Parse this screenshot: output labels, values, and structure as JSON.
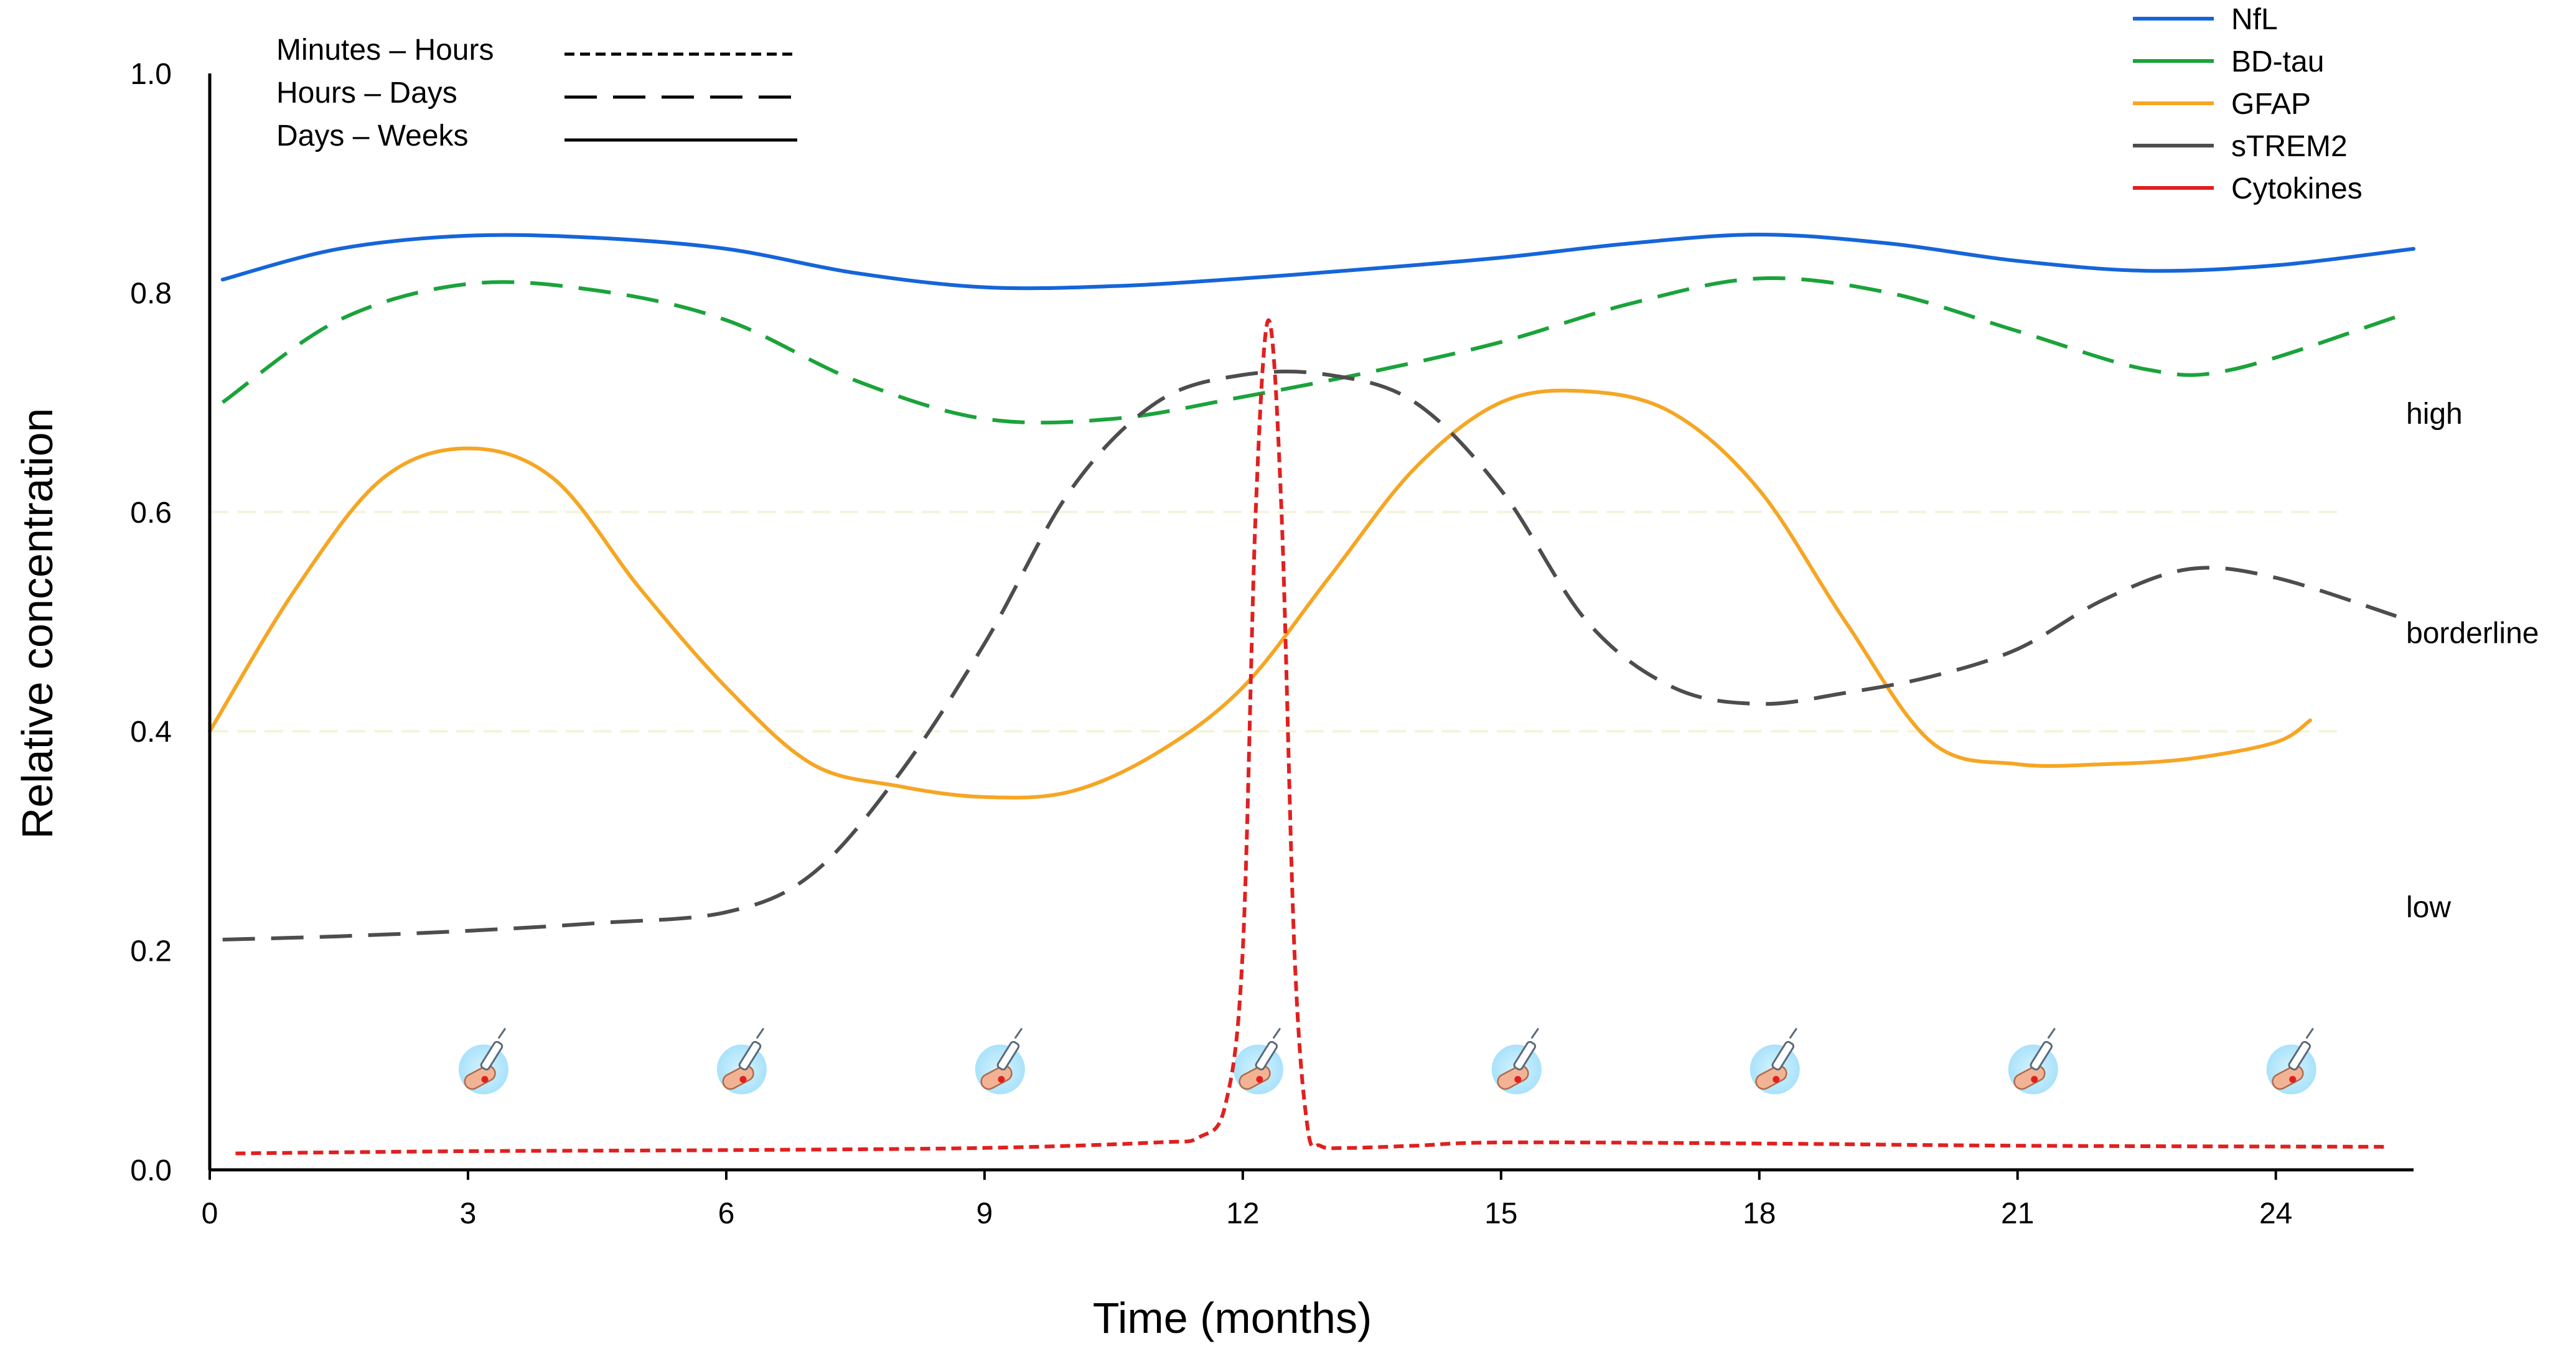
{
  "chart_data": {
    "type": "line",
    "title": "",
    "xlabel": "Time (months)",
    "ylabel": "Relative concentration",
    "xlim": [
      0,
      25.6
    ],
    "ylim": [
      0.0,
      1.0
    ],
    "x_ticks": [
      0,
      3,
      6,
      9,
      12,
      15,
      18,
      21,
      24
    ],
    "y_ticks": [
      0.0,
      0.2,
      0.4,
      0.6,
      0.8,
      1.0
    ],
    "y_tick_labels": [
      "0.0",
      "0.2",
      "0.4",
      "0.6",
      "0.8",
      "1.0"
    ],
    "thresholds": [
      0.4,
      0.6
    ],
    "zones": [
      {
        "label": "high",
        "y": 0.69
      },
      {
        "label": "borderline",
        "y": 0.49
      },
      {
        "label": "low",
        "y": 0.24
      }
    ],
    "sampling_marker_x": [
      3,
      6,
      9,
      12,
      15,
      18,
      21,
      24
    ],
    "sampling_marker_y": 0.095,
    "timescale_legend": {
      "position": "top-left",
      "entries": [
        {
          "label": "Minutes – Hours",
          "style": "dotted"
        },
        {
          "label": "Hours – Days",
          "style": "dashed"
        },
        {
          "label": "Days – Weeks",
          "style": "solid"
        }
      ]
    },
    "legend": {
      "position": "top-right",
      "entries": [
        "NfL",
        "BD-tau",
        "GFAP",
        "sTREM2",
        "Cytokines"
      ]
    },
    "series": [
      {
        "name": "NfL",
        "color": "#1565D8",
        "style": "solid",
        "x": [
          0.15,
          1.5,
          3.0,
          4.5,
          6.0,
          7.5,
          9.0,
          10.5,
          12.0,
          13.5,
          15.0,
          16.5,
          18.0,
          19.5,
          21.0,
          22.5,
          24.0,
          25.6
        ],
        "y": [
          0.812,
          0.84,
          0.852,
          0.85,
          0.84,
          0.818,
          0.805,
          0.806,
          0.813,
          0.822,
          0.832,
          0.845,
          0.853,
          0.845,
          0.829,
          0.82,
          0.825,
          0.84
        ]
      },
      {
        "name": "BD-tau",
        "color": "#1AA33A",
        "style": "dashed",
        "x": [
          0.15,
          1.5,
          3.0,
          4.5,
          6.0,
          7.5,
          9.0,
          10.5,
          12.0,
          13.5,
          15.0,
          16.5,
          18.0,
          19.5,
          21.0,
          22.5,
          23.5,
          25.4
        ],
        "y": [
          0.7,
          0.775,
          0.808,
          0.802,
          0.775,
          0.72,
          0.685,
          0.685,
          0.705,
          0.728,
          0.755,
          0.79,
          0.813,
          0.8,
          0.765,
          0.73,
          0.73,
          0.778
        ]
      },
      {
        "name": "GFAP",
        "color": "#F5A623",
        "style": "solid",
        "x": [
          0.0,
          1.0,
          2.0,
          3.0,
          4.0,
          5.0,
          6.0,
          7.0,
          8.0,
          9.0,
          10.0,
          11.0,
          12.0,
          13.0,
          14.0,
          15.0,
          16.0,
          17.0,
          18.0,
          19.0,
          20.0,
          21.0,
          22.0,
          23.0,
          24.0,
          24.4
        ],
        "y": [
          0.4,
          0.53,
          0.63,
          0.658,
          0.63,
          0.53,
          0.44,
          0.37,
          0.35,
          0.34,
          0.345,
          0.38,
          0.44,
          0.54,
          0.64,
          0.7,
          0.71,
          0.69,
          0.62,
          0.5,
          0.39,
          0.37,
          0.37,
          0.375,
          0.39,
          0.41
        ]
      },
      {
        "name": "sTREM2",
        "color": "#4D4D4D",
        "style": "dashed",
        "x": [
          0.15,
          1.5,
          3.0,
          4.5,
          6.0,
          7.0,
          8.0,
          9.0,
          10.0,
          11.0,
          12.0,
          13.0,
          14.0,
          15.0,
          16.0,
          17.0,
          18.0,
          19.0,
          20.0,
          21.0,
          22.0,
          23.0,
          24.0,
          25.4
        ],
        "y": [
          0.21,
          0.213,
          0.218,
          0.225,
          0.235,
          0.27,
          0.36,
          0.48,
          0.62,
          0.7,
          0.725,
          0.725,
          0.7,
          0.62,
          0.5,
          0.44,
          0.425,
          0.435,
          0.45,
          0.475,
          0.52,
          0.548,
          0.54,
          0.505
        ]
      },
      {
        "name": "Cytokines",
        "color": "#E02020",
        "style": "dotted",
        "x": [
          0.3,
          3.0,
          6.0,
          9.0,
          11.0,
          11.5,
          11.8,
          12.0,
          12.15,
          12.3,
          12.45,
          12.6,
          12.75,
          12.9,
          13.2,
          14.0,
          15.0,
          18.0,
          21.0,
          25.3
        ],
        "y": [
          0.015,
          0.017,
          0.018,
          0.02,
          0.025,
          0.03,
          0.06,
          0.2,
          0.6,
          0.775,
          0.6,
          0.2,
          0.04,
          0.022,
          0.02,
          0.022,
          0.025,
          0.024,
          0.022,
          0.021
        ]
      }
    ]
  }
}
